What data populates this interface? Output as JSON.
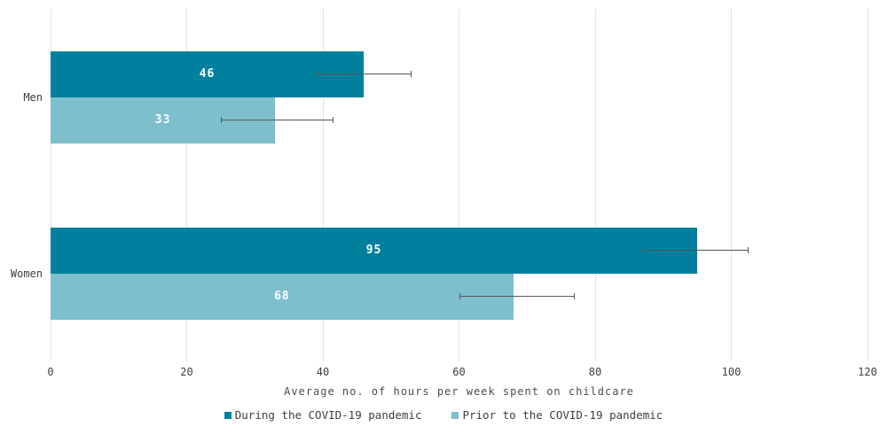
{
  "chart_data": {
    "type": "bar",
    "orientation": "horizontal",
    "title": "",
    "xlabel": "Average no. of hours per week spent on childcare",
    "ylabel": "",
    "xlim": [
      0,
      120
    ],
    "xticks": [
      0,
      20,
      40,
      60,
      80,
      100,
      120
    ],
    "grid": true,
    "legend_position": "bottom",
    "categories": [
      "Men",
      "Women"
    ],
    "series": [
      {
        "name": "During the COVID-19 pandemic",
        "color": "#00809D",
        "values": [
          46,
          95
        ],
        "error_bars": [
          [
            39,
            53
          ],
          [
            87,
            102.5
          ]
        ]
      },
      {
        "name": "Prior to the COVID-19 pandemic",
        "color": "#7DBFCD",
        "values": [
          33,
          68
        ],
        "error_bars": [
          [
            25,
            41.5
          ],
          [
            60,
            77
          ]
        ]
      }
    ],
    "value_label_color": "#FFFFFF"
  },
  "styles": {
    "gridline_color": "#E3E3E3",
    "errorbar_color": "#555555",
    "tick_text_color": "#3E3E3E",
    "axis_title_color": "#4D4D4D",
    "background": "#FFFFFF"
  }
}
